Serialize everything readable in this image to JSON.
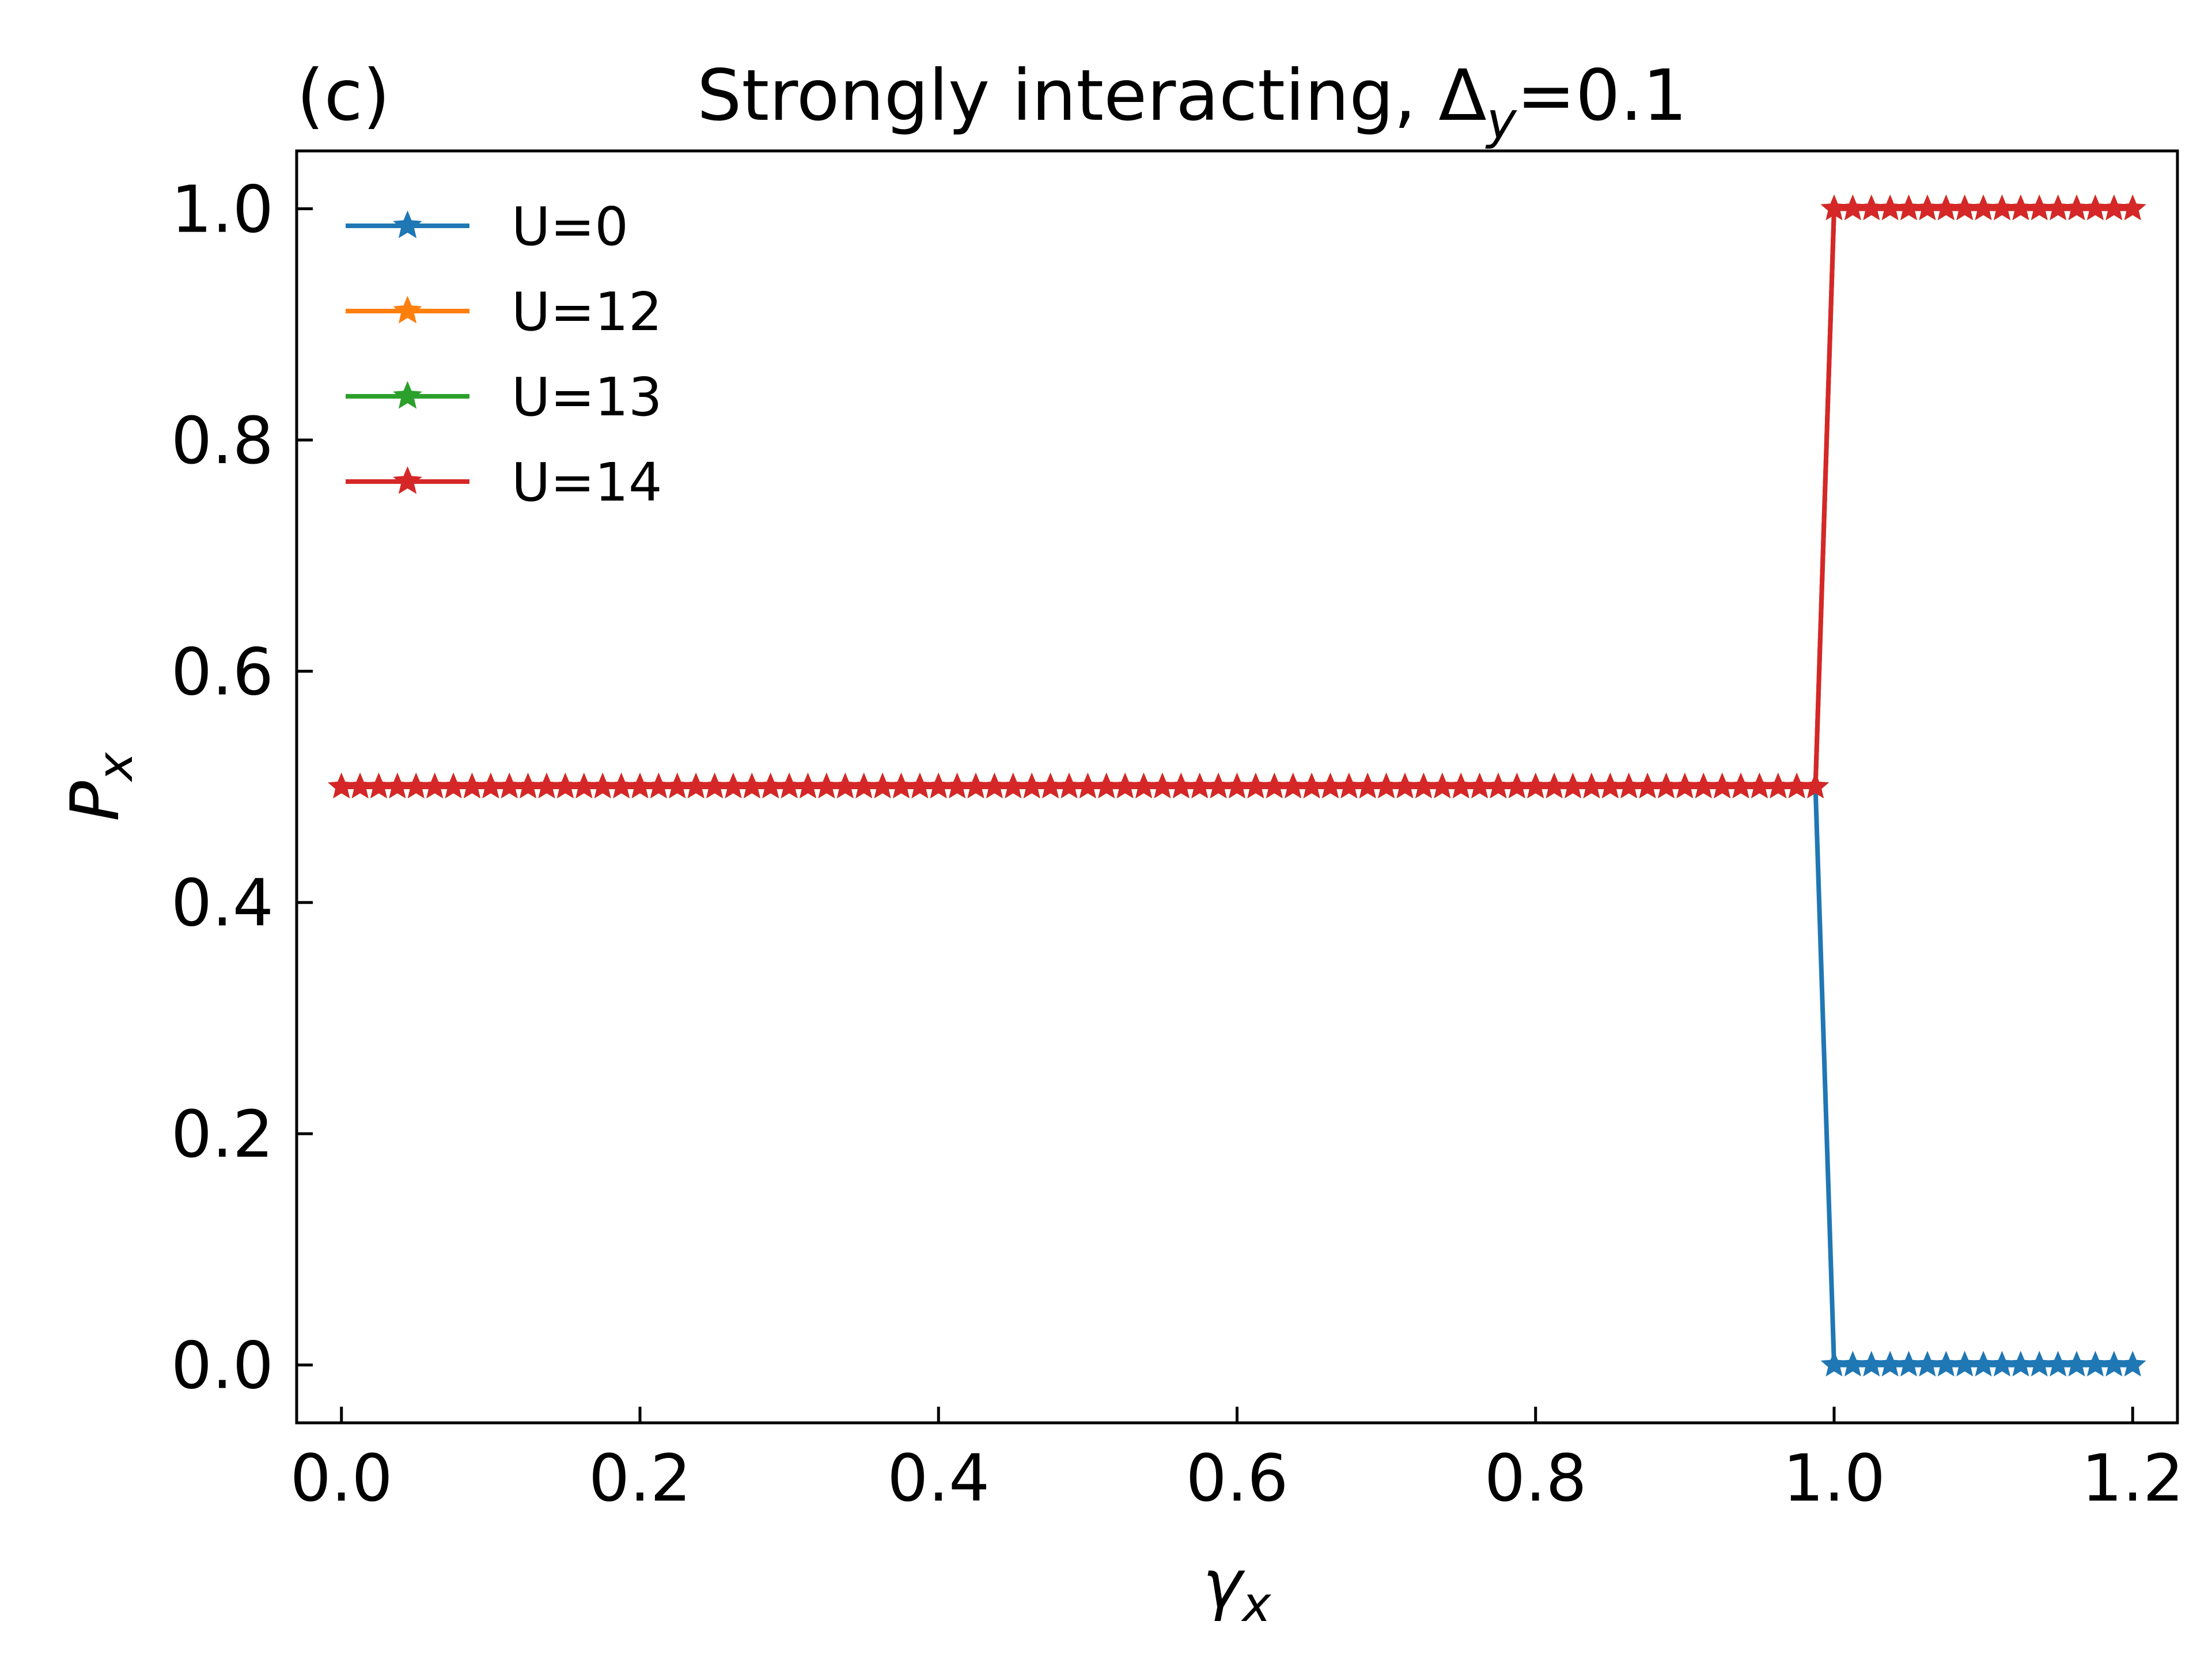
{
  "chart_data": {
    "type": "line",
    "panel_label": "(c)",
    "title": "Strongly interacting, Δ",
    "title_sub": "y",
    "title_suffix": "=0.1",
    "xlabel": "γ",
    "xlabel_sub": "x",
    "ylabel": "P",
    "ylabel_sub": "x",
    "xlim": [
      -0.03,
      1.23
    ],
    "ylim": [
      -0.05,
      1.05
    ],
    "xticks": [
      0.0,
      0.2,
      0.4,
      0.6,
      0.8,
      1.0,
      1.2
    ],
    "xtick_labels": [
      "0.0",
      "0.2",
      "0.4",
      "0.6",
      "0.8",
      "1.0",
      "1.2"
    ],
    "yticks": [
      0.0,
      0.2,
      0.4,
      0.6,
      0.8,
      1.0
    ],
    "ytick_labels": [
      "0.0",
      "0.2",
      "0.4",
      "0.6",
      "0.8",
      "1.0"
    ],
    "x_range": [
      0.0,
      1.2
    ],
    "x_step": 0.0125,
    "transition_x": 1.0,
    "series": [
      {
        "name": "U=0",
        "color": "#1f77b4",
        "value_below": 0.5,
        "value_above": 0.0
      },
      {
        "name": "U=12",
        "color": "#ff7f0e",
        "value_below": 0.5,
        "value_above": 1.0
      },
      {
        "name": "U=13",
        "color": "#2ca02c",
        "value_below": 0.5,
        "value_above": 1.0
      },
      {
        "name": "U=14",
        "color": "#d62728",
        "value_below": 0.5,
        "value_above": 1.0
      }
    ],
    "legend_position": "top-left",
    "marker": "star",
    "grid": false
  }
}
